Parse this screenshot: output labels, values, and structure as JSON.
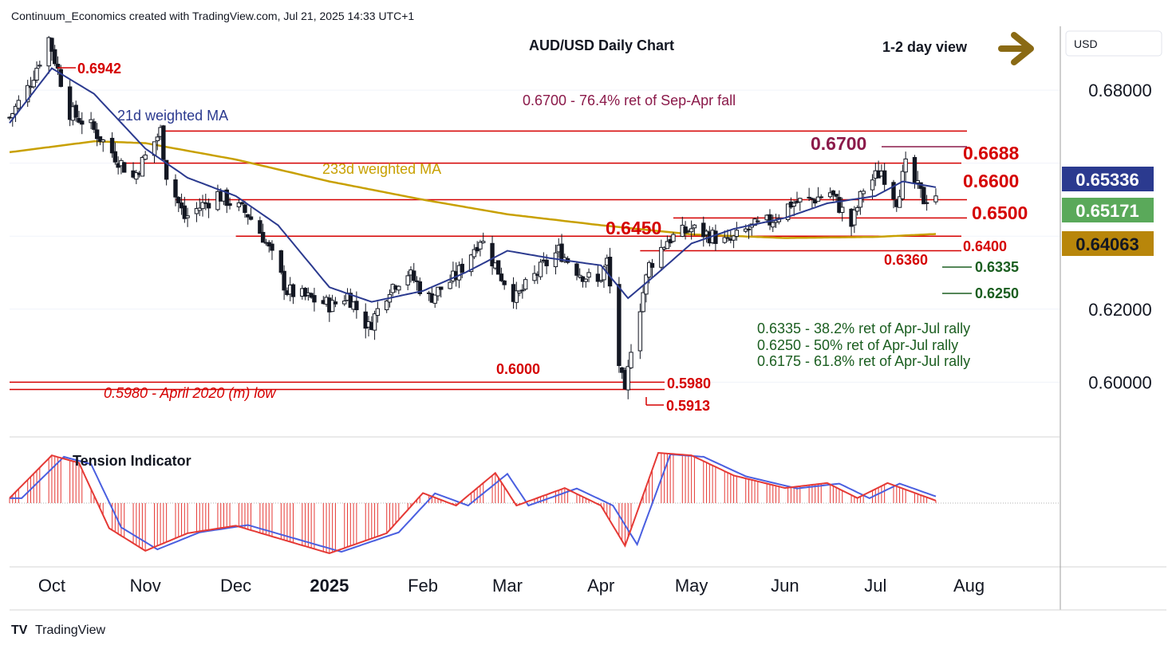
{
  "header": {
    "attribution": "Continuum_Economics created with TradingView.com, Jul 21, 2025 14:33 UTC+1",
    "footer_logo": "TradingView"
  },
  "currency_box": "USD",
  "colors": {
    "red": "#d50000",
    "maroon": "#8b1a4a",
    "navy": "#2b3a8f",
    "gold": "#c8a000",
    "green": "#1b5e20",
    "brown": "#8a6a14",
    "price_green": "#5aa95a",
    "ma233_box": "#b8860b"
  },
  "chart_data": {
    "type": "candlestick",
    "title": "AUD/USD Daily Chart",
    "view_label": "1-2 day view",
    "y_axis": {
      "range": [
        0.585,
        0.6975
      ],
      "ticks": [
        "0.68000",
        "0.62000",
        "0.60000"
      ],
      "tick_values": [
        0.68,
        0.62,
        0.6
      ],
      "price_labels": [
        {
          "text": "0.65336",
          "value": 0.65336,
          "kind": "ma21"
        },
        {
          "text": "0.65171",
          "value": 0.65171,
          "kind": "last"
        },
        {
          "text": "0.64063",
          "value": 0.64063,
          "kind": "ma233"
        }
      ]
    },
    "x_axis": {
      "labels": [
        "Oct",
        "Nov",
        "Dec",
        "2025",
        "Feb",
        "Mar",
        "Apr",
        "May",
        "Jun",
        "Jul",
        "Aug"
      ],
      "dates": [
        "2024-10-01",
        "2024-11-01",
        "2024-12-01",
        "2025-01-01",
        "2025-02-01",
        "2025-03-01",
        "2025-04-01",
        "2025-05-01",
        "2025-06-01",
        "2025-07-01",
        "2025-08-01"
      ],
      "range": [
        "2024-09-17",
        "2025-08-31"
      ]
    },
    "ohlc_keypoints": [
      [
        "2024-09-17",
        0.6725
      ],
      [
        "2024-09-23",
        0.6805
      ],
      [
        "2024-09-30",
        0.6942
      ],
      [
        "2024-10-07",
        0.674
      ],
      [
        "2024-10-14",
        0.67
      ],
      [
        "2024-10-21",
        0.663
      ],
      [
        "2024-10-28",
        0.656
      ],
      [
        "2024-11-06",
        0.6688
      ],
      [
        "2024-11-08",
        0.657
      ],
      [
        "2024-11-14",
        0.645
      ],
      [
        "2024-11-25",
        0.6515
      ],
      [
        "2024-12-05",
        0.646
      ],
      [
        "2024-12-10",
        0.64
      ],
      [
        "2024-12-18",
        0.625
      ],
      [
        "2024-12-25",
        0.623
      ],
      [
        "2025-01-02",
        0.621
      ],
      [
        "2025-01-07",
        0.624
      ],
      [
        "2025-01-14",
        0.615
      ],
      [
        "2025-01-21",
        0.626
      ],
      [
        "2025-01-27",
        0.63
      ],
      [
        "2025-02-03",
        0.623
      ],
      [
        "2025-02-12",
        0.629
      ],
      [
        "2025-02-20",
        0.6395
      ],
      [
        "2025-02-27",
        0.629
      ],
      [
        "2025-03-04",
        0.623
      ],
      [
        "2025-03-11",
        0.63
      ],
      [
        "2025-03-18",
        0.636
      ],
      [
        "2025-03-25",
        0.63
      ],
      [
        "2025-03-31",
        0.627
      ],
      [
        "2025-04-03",
        0.633
      ],
      [
        "2025-04-07",
        0.605
      ],
      [
        "2025-04-09",
        0.596
      ],
      [
        "2025-04-11",
        0.61
      ],
      [
        "2025-04-17",
        0.632
      ],
      [
        "2025-04-23",
        0.639
      ],
      [
        "2025-05-01",
        0.642
      ],
      [
        "2025-05-08",
        0.64
      ],
      [
        "2025-05-13",
        0.638
      ],
      [
        "2025-05-20",
        0.642
      ],
      [
        "2025-05-27",
        0.644
      ],
      [
        "2025-06-03",
        0.649
      ],
      [
        "2025-06-10",
        0.65
      ],
      [
        "2025-06-16",
        0.652
      ],
      [
        "2025-06-23",
        0.643
      ],
      [
        "2025-06-27",
        0.653
      ],
      [
        "2025-07-03",
        0.658
      ],
      [
        "2025-07-08",
        0.65
      ],
      [
        "2025-07-11",
        0.659
      ],
      [
        "2025-07-17",
        0.65
      ],
      [
        "2025-07-21",
        0.6517
      ]
    ],
    "ma21_keypoints": [
      [
        "2024-09-17",
        0.671
      ],
      [
        "2024-10-01",
        0.686
      ],
      [
        "2024-10-15",
        0.679
      ],
      [
        "2024-11-01",
        0.664
      ],
      [
        "2024-11-15",
        0.656
      ],
      [
        "2024-12-01",
        0.651
      ],
      [
        "2024-12-15",
        0.643
      ],
      [
        "2025-01-01",
        0.626
      ],
      [
        "2025-01-15",
        0.622
      ],
      [
        "2025-02-01",
        0.625
      ],
      [
        "2025-02-15",
        0.63
      ],
      [
        "2025-03-01",
        0.636
      ],
      [
        "2025-03-15",
        0.634
      ],
      [
        "2025-04-01",
        0.632
      ],
      [
        "2025-04-10",
        0.623
      ],
      [
        "2025-04-20",
        0.63
      ],
      [
        "2025-05-01",
        0.638
      ],
      [
        "2025-05-15",
        0.642
      ],
      [
        "2025-06-01",
        0.645
      ],
      [
        "2025-06-15",
        0.649
      ],
      [
        "2025-07-01",
        0.651
      ],
      [
        "2025-07-10",
        0.655
      ],
      [
        "2025-07-21",
        0.6534
      ]
    ],
    "ma233_keypoints": [
      [
        "2024-09-17",
        0.663
      ],
      [
        "2024-10-15",
        0.666
      ],
      [
        "2024-11-01",
        0.6655
      ],
      [
        "2024-12-01",
        0.661
      ],
      [
        "2025-01-01",
        0.655
      ],
      [
        "2025-02-01",
        0.65
      ],
      [
        "2025-03-01",
        0.646
      ],
      [
        "2025-04-01",
        0.643
      ],
      [
        "2025-05-01",
        0.6405
      ],
      [
        "2025-06-01",
        0.6395
      ],
      [
        "2025-07-01",
        0.6398
      ],
      [
        "2025-07-21",
        0.6406
      ]
    ],
    "levels": [
      {
        "value": 0.6688,
        "label": "0.6688",
        "from": "2024-11-06"
      },
      {
        "value": 0.66,
        "label": "0.6600",
        "from": "2024-10-24"
      },
      {
        "value": 0.65,
        "label": "0.6500",
        "from": "2024-11-11"
      },
      {
        "value": 0.645,
        "label": "0.6450",
        "from": "2025-04-25"
      },
      {
        "value": 0.64,
        "label": "0.6400",
        "from": "2024-12-01"
      },
      {
        "value": 0.636,
        "label": "0.6360",
        "from": "2025-04-14"
      },
      {
        "value": 0.6,
        "label": "0.6000",
        "from": "2024-09-17"
      },
      {
        "value": 0.598,
        "label": "0.5980",
        "from": "2024-09-17"
      }
    ],
    "markers": [
      {
        "label": "0.6942",
        "value": 0.6942,
        "date": "2024-09-30"
      },
      {
        "label": "0.5913",
        "value": 0.5913,
        "date": "2025-04-09"
      },
      {
        "label": "0.6700",
        "value": 0.67
      },
      {
        "label": "0.6335",
        "value": 0.6335
      },
      {
        "label": "0.6250",
        "value": 0.625
      }
    ],
    "annotations": {
      "ma21": "21d weighted MA",
      "ma233": "233d weighted MA",
      "ret_76": "0.6700 - 76.4% ret of Sep-Apr fall",
      "april_low": "0.5980 - April 2020 (m) low",
      "fib_382": "0.6335 - 38.2% ret of Apr-Jul rally",
      "fib_50": "0.6250 - 50% ret of Apr-Jul rally",
      "fib_618": "0.6175 - 61.8% ret of Apr-Jul rally"
    },
    "indicator": {
      "title": "Tension Indicator",
      "keypoints": [
        [
          "2024-09-17",
          0.1
        ],
        [
          "2024-10-01",
          0.95
        ],
        [
          "2024-10-10",
          0.8
        ],
        [
          "2024-10-20",
          -0.5
        ],
        [
          "2024-11-01",
          -0.95
        ],
        [
          "2024-11-15",
          -0.6
        ],
        [
          "2024-12-01",
          -0.45
        ],
        [
          "2024-12-15",
          -0.7
        ],
        [
          "2025-01-01",
          -1.0
        ],
        [
          "2025-01-20",
          -0.6
        ],
        [
          "2025-02-01",
          0.2
        ],
        [
          "2025-02-12",
          -0.05
        ],
        [
          "2025-02-25",
          0.6
        ],
        [
          "2025-03-04",
          -0.05
        ],
        [
          "2025-03-20",
          0.3
        ],
        [
          "2025-04-01",
          -0.05
        ],
        [
          "2025-04-09",
          -0.85
        ],
        [
          "2025-04-20",
          1.0
        ],
        [
          "2025-05-01",
          0.95
        ],
        [
          "2025-05-15",
          0.55
        ],
        [
          "2025-06-01",
          0.3
        ],
        [
          "2025-06-15",
          0.4
        ],
        [
          "2025-06-25",
          0.1
        ],
        [
          "2025-07-05",
          0.4
        ],
        [
          "2025-07-21",
          0.05
        ]
      ]
    }
  }
}
